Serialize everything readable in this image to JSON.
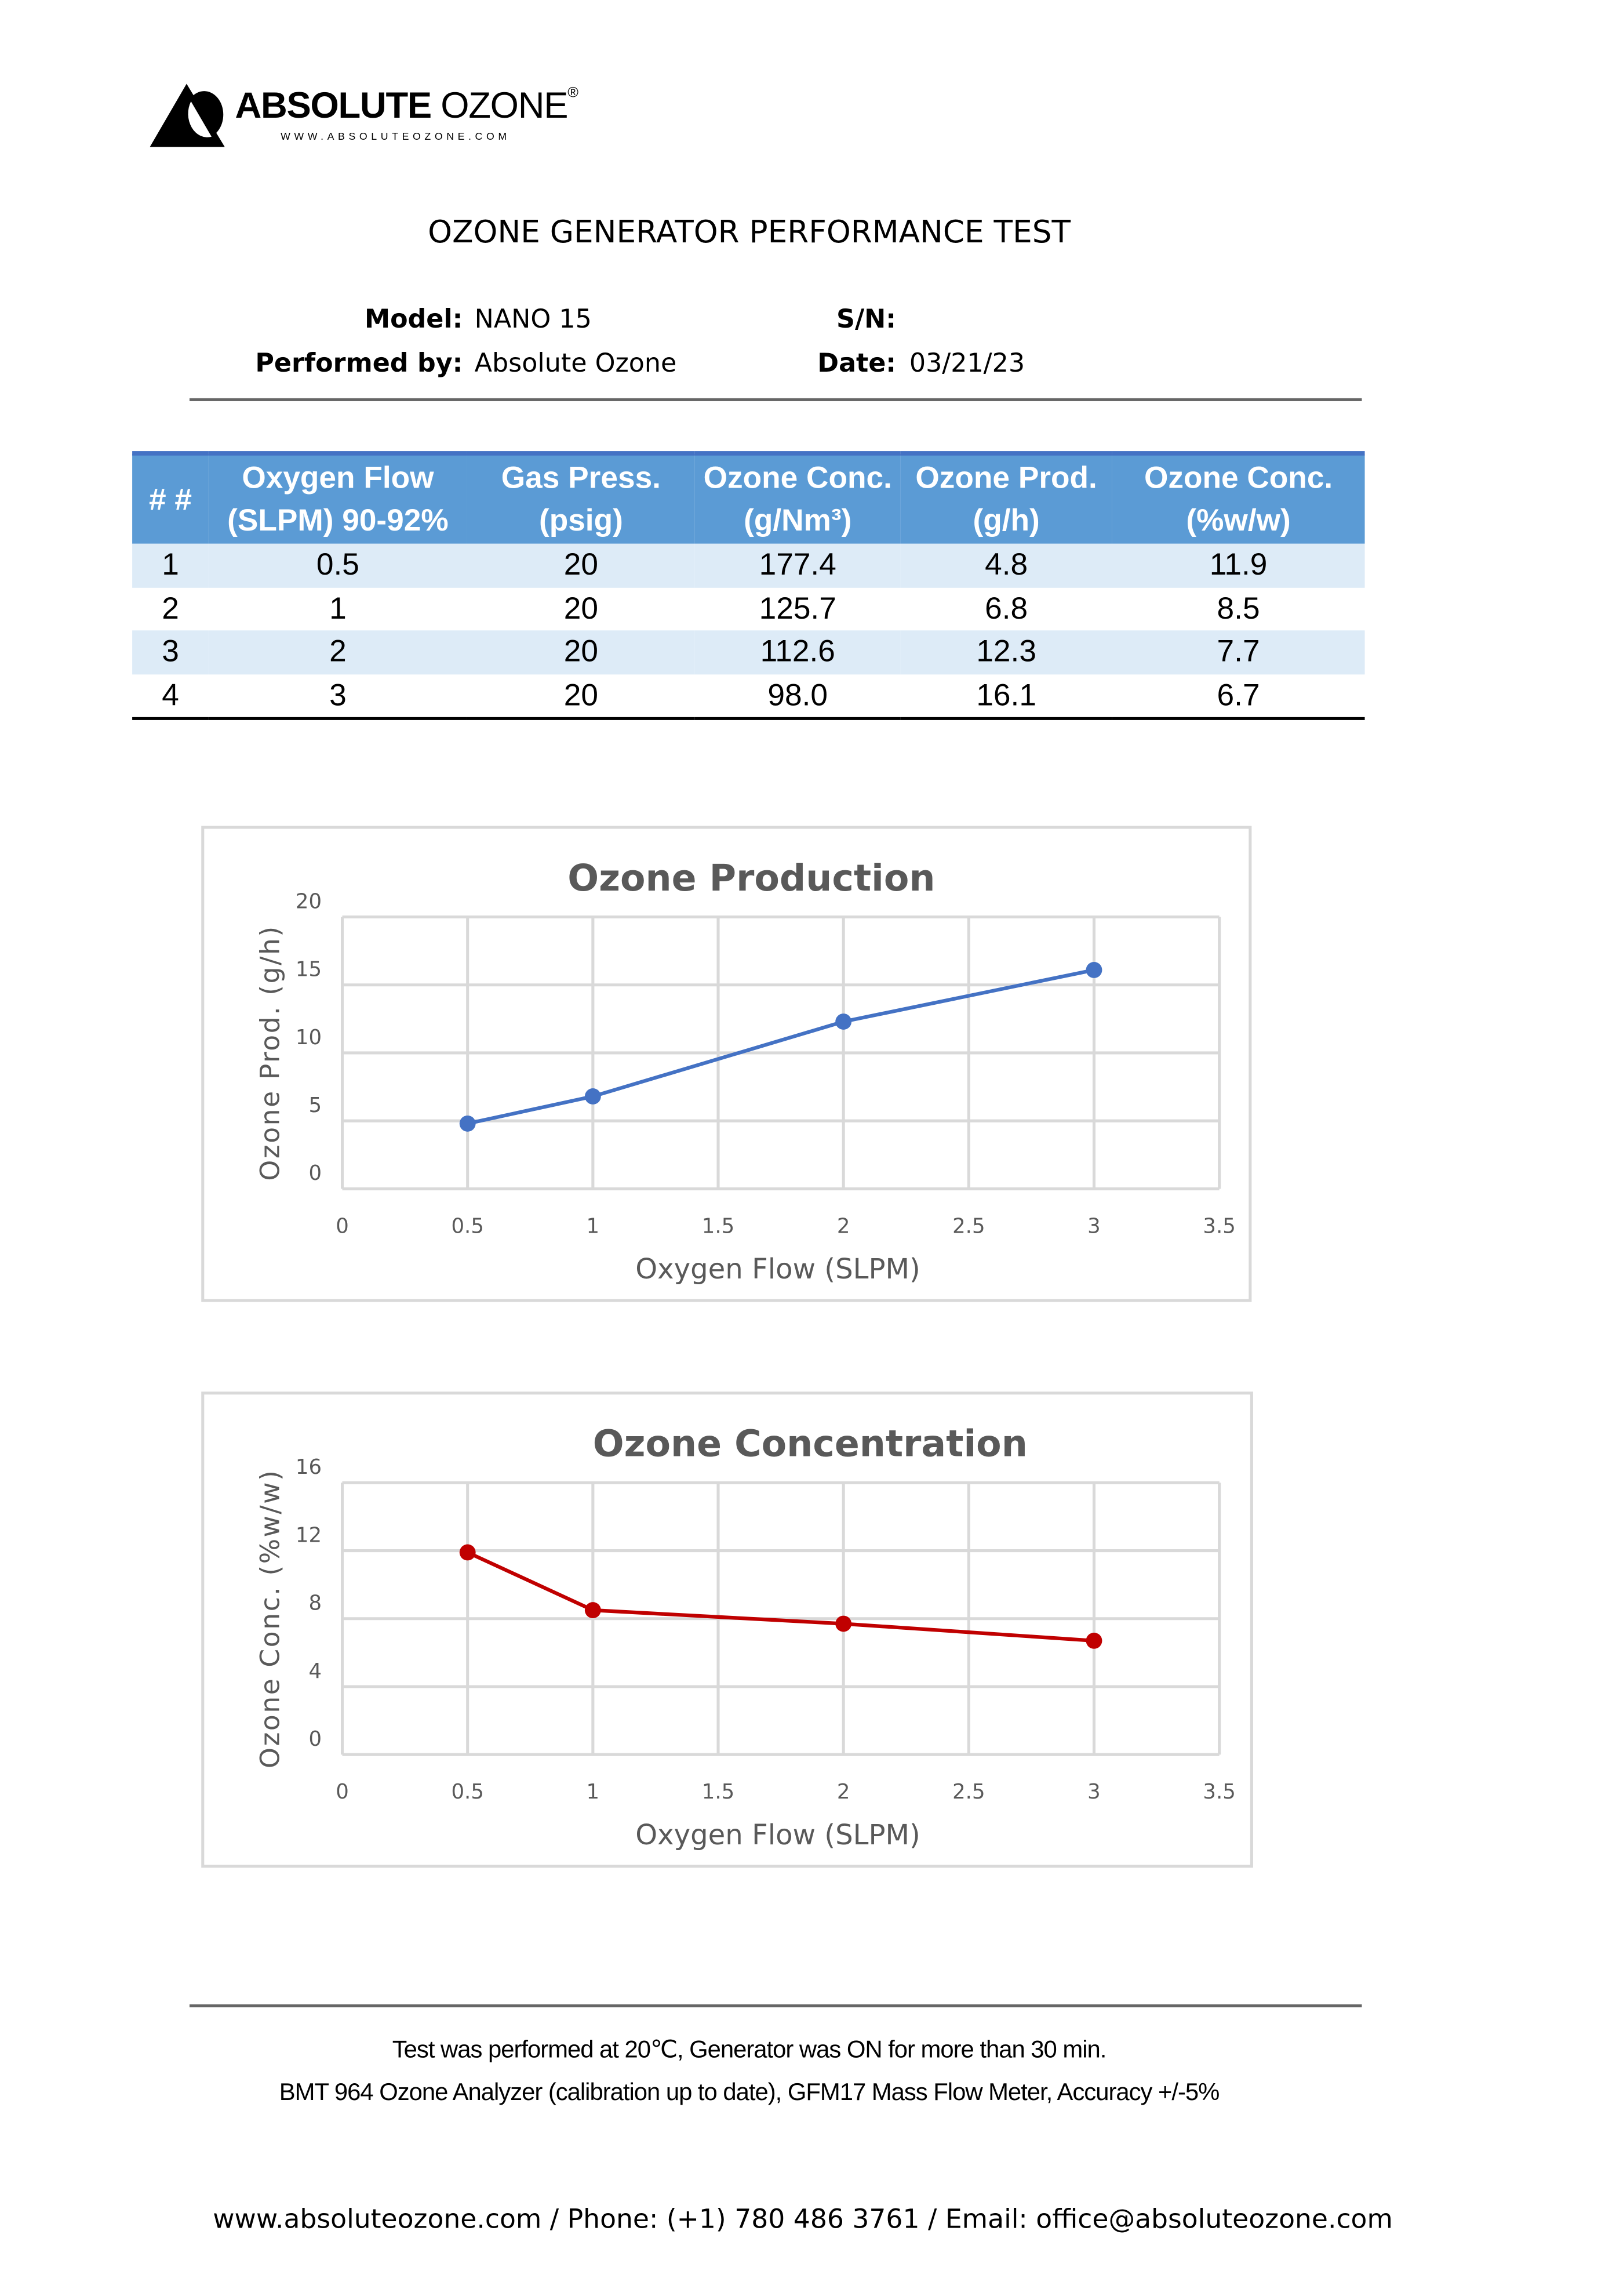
{
  "logo": {
    "brand_bold": "ABSOLUTE",
    "brand_light": "OZONE",
    "registered": "®",
    "url": "WWW.ABSOLUTEOZONE.COM"
  },
  "title": "OZONE GENERATOR PERFORMANCE TEST",
  "info": {
    "model_label": "Model:",
    "model": "NANO 15",
    "performed_label": "Performed by:",
    "performed": "Absolute Ozone",
    "sn_label": "S/N:",
    "sn": "",
    "date_label": "Date:",
    "date": "03/21/23"
  },
  "table": {
    "headers": [
      [
        "# #",
        ""
      ],
      [
        "Oxygen Flow",
        "(SLPM) 90-92%"
      ],
      [
        "Gas Press.",
        "(psig)"
      ],
      [
        "Ozone Conc.",
        "(g/Nm³)"
      ],
      [
        "Ozone Prod.",
        "(g/h)"
      ],
      [
        "Ozone Conc.",
        "(%w/w)"
      ]
    ],
    "rows": [
      [
        "1",
        "0.5",
        "20",
        "177.4",
        "4.8",
        "11.9"
      ],
      [
        "2",
        "1",
        "20",
        "125.7",
        "6.8",
        "8.5"
      ],
      [
        "3",
        "2",
        "20",
        "112.6",
        "12.3",
        "7.7"
      ],
      [
        "4",
        "3",
        "20",
        "98.0",
        "16.1",
        "6.7"
      ]
    ],
    "header_color": "#5b9bd5",
    "stripe_color": "#ddebf7"
  },
  "chart_data": [
    {
      "type": "line",
      "title": "Ozone Production",
      "xlabel": "Oxygen Flow (SLPM)",
      "ylabel": "Ozone Prod. (g/h)",
      "x": [
        0.5,
        1,
        2,
        3
      ],
      "y": [
        4.8,
        6.8,
        12.3,
        16.1
      ],
      "xlim": [
        0,
        3.5
      ],
      "ylim": [
        0,
        20
      ],
      "xticks": [
        "0",
        "0.5",
        "1",
        "1.5",
        "2",
        "2.5",
        "3",
        "3.5"
      ],
      "yticks": [
        "0",
        "5",
        "10",
        "15",
        "20"
      ],
      "grid": true,
      "color": "#4472c4"
    },
    {
      "type": "line",
      "title": "Ozone Concentration",
      "xlabel": "Oxygen Flow (SLPM)",
      "ylabel": "Ozone Conc. (%w/w)",
      "x": [
        0.5,
        1,
        2,
        3
      ],
      "y": [
        11.9,
        8.5,
        7.7,
        6.7
      ],
      "xlim": [
        0,
        3.5
      ],
      "ylim": [
        0,
        16
      ],
      "xticks": [
        "0",
        "0.5",
        "1",
        "1.5",
        "2",
        "2.5",
        "3",
        "3.5"
      ],
      "yticks": [
        "0",
        "4",
        "8",
        "12",
        "16"
      ],
      "grid": true,
      "color": "#c00000"
    }
  ],
  "notes": [
    "Test was performed at 20℃, Generator was ON for more than 30 min.",
    "BMT 964 Ozone Analyzer (calibration up to date), GFM17 Mass Flow Meter, Accuracy +/-5%"
  ],
  "contact": "www.absoluteozone.com / Phone: (+1) 780 486 3761 / Email: office@absoluteozone.com"
}
